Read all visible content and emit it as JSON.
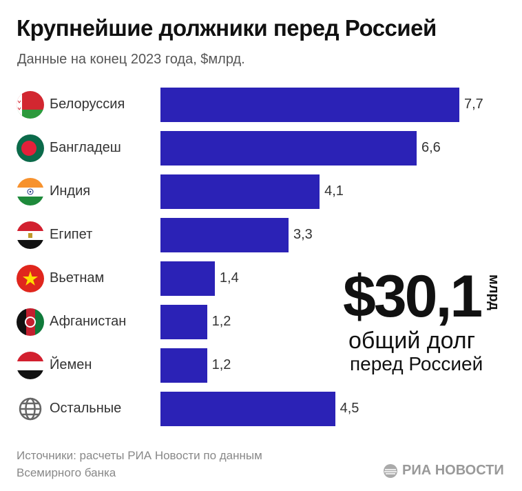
{
  "title": "Крупнейшие должники перед Россией",
  "subtitle": "Данные на конец 2023 года, $млрд.",
  "chart_data": {
    "type": "bar",
    "orientation": "horizontal",
    "categories": [
      "Белоруссия",
      "Бангладеш",
      "Индия",
      "Египет",
      "Вьетнам",
      "Афганистан",
      "Йемен",
      "Остальные"
    ],
    "values": [
      7.7,
      6.6,
      4.1,
      3.3,
      1.4,
      1.2,
      1.2,
      4.5
    ],
    "value_labels": [
      "7,7",
      "6,6",
      "4,1",
      "3,3",
      "1,4",
      "1,2",
      "1,2",
      "4,5"
    ],
    "flags": [
      "belarus-flag",
      "bangladesh-flag",
      "india-flag",
      "egypt-flag",
      "vietnam-flag",
      "afghanistan-flag",
      "yemen-flag",
      "globe-icon"
    ],
    "bar_color": "#2b22b6",
    "xlim": [
      0,
      7.7
    ],
    "grid": false
  },
  "total": {
    "value": "$30,1",
    "unit": "млрд",
    "caption1": "общий долг",
    "caption2": "перед Россией"
  },
  "source": "Источники: расчеты РИА Новости по данным Всемирного банка",
  "logo": "РИА НОВОСТИ"
}
